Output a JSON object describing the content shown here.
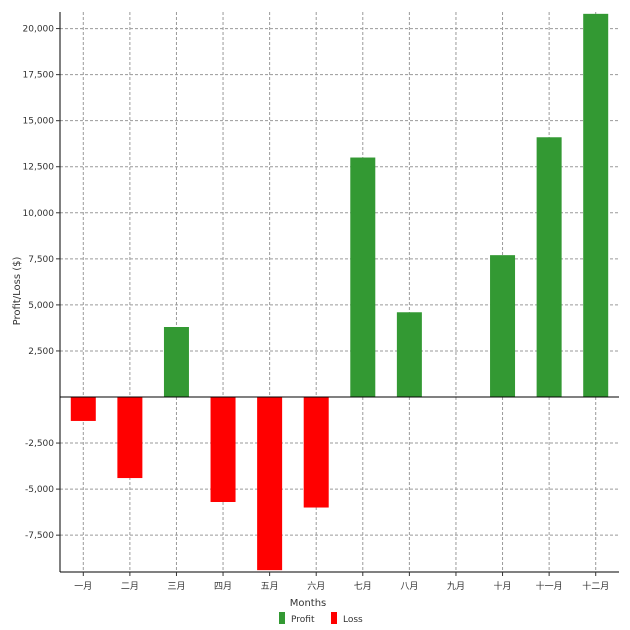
{
  "chart_data": {
    "type": "bar",
    "title": "",
    "xlabel": "Months",
    "ylabel": "Profit/Loss ($)",
    "categories": [
      "一月",
      "二月",
      "三月",
      "四月",
      "五月",
      "六月",
      "七月",
      "八月",
      "九月",
      "十月",
      "十一月",
      "十二月"
    ],
    "values": [
      -1300,
      -4400,
      3800,
      -5700,
      -9400,
      -6000,
      13000,
      4600,
      0,
      7700,
      14100,
      20800
    ],
    "y_ticks": [
      -7500,
      -5000,
      -2500,
      2500,
      5000,
      7500,
      10000,
      12500,
      15000,
      17500,
      20000
    ],
    "y_tick_labels": [
      "-7,500",
      "-5,000",
      "-2,500",
      "2,500",
      "5,000",
      "7,500",
      "10,000",
      "12,500",
      "15,000",
      "17,500",
      "20,000"
    ],
    "ylim": [
      -9500,
      20900
    ],
    "grid": true,
    "series_colors": {
      "Profit": "#339933",
      "Loss": "#ff0000"
    },
    "legend": {
      "position": "bottom-center",
      "items": [
        {
          "label": "Profit",
          "color": "#339933"
        },
        {
          "label": "Loss",
          "color": "#ff0000"
        }
      ]
    }
  }
}
